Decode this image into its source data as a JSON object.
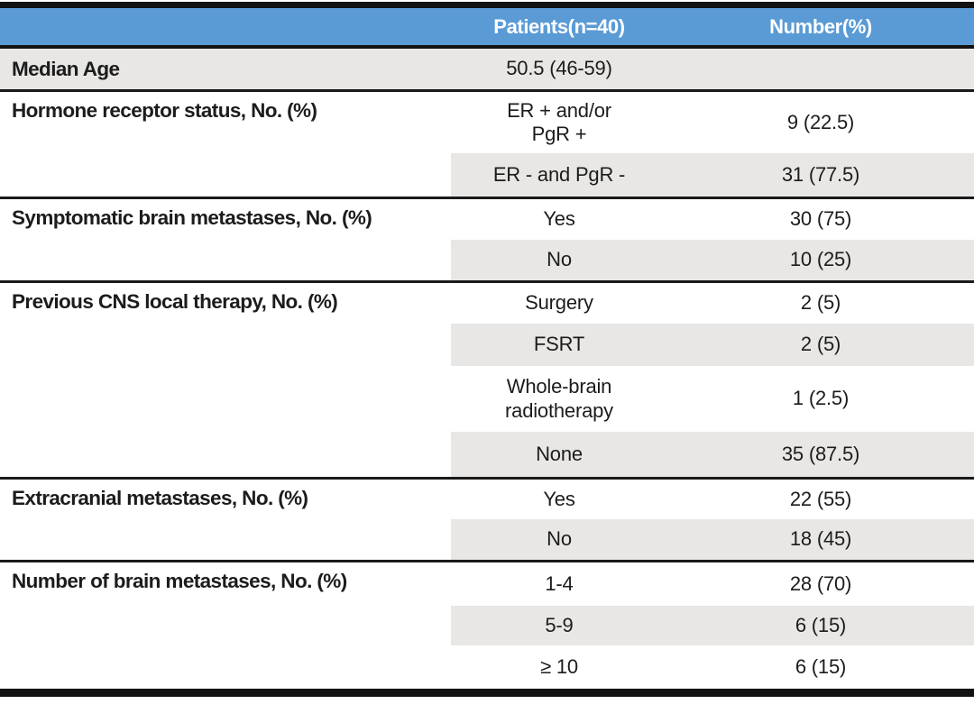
{
  "colors": {
    "header_bg": "#5B9BD5",
    "shade": "#E8E7E5",
    "bar": "#121212",
    "divider": "#1A1A1A",
    "text": "#1C1C1C",
    "header_text": "#FFFFFF"
  },
  "table": {
    "header": {
      "patients": "Patients(n=40)",
      "number": "Number(%)"
    },
    "sections": [
      {
        "label": "Median Age",
        "rows": [
          {
            "patients": "50.5 (46-59)",
            "number": ""
          }
        ]
      },
      {
        "label": "Hormone receptor status, No. (%)",
        "rows": [
          {
            "patients": "ER + and/or\nPgR +",
            "number": "9 (22.5)"
          },
          {
            "patients": "ER - and PgR -",
            "number": "31 (77.5)"
          }
        ]
      },
      {
        "label": "Symptomatic brain metastases, No. (%)",
        "rows": [
          {
            "patients": "Yes",
            "number": "30 (75)"
          },
          {
            "patients": "No",
            "number": "10 (25)"
          }
        ]
      },
      {
        "label": "Previous CNS local therapy, No. (%)",
        "rows": [
          {
            "patients": "Surgery",
            "number": "2 (5)"
          },
          {
            "patients": "FSRT",
            "number": "2 (5)"
          },
          {
            "patients": "Whole-brain\nradiotherapy",
            "number": "1 (2.5)"
          },
          {
            "patients": "None",
            "number": "35 (87.5)"
          }
        ]
      },
      {
        "label": "Extracranial metastases, No. (%)",
        "rows": [
          {
            "patients": "Yes",
            "number": "22 (55)"
          },
          {
            "patients": "No",
            "number": "18 (45)"
          }
        ]
      },
      {
        "label": "Number of brain metastases, No. (%)",
        "rows": [
          {
            "patients": "1-4",
            "number": "28 (70)"
          },
          {
            "patients": "5-9",
            "number": "6 (15)"
          },
          {
            "patients": "≥ 10",
            "number": "6 (15)"
          }
        ]
      }
    ]
  }
}
